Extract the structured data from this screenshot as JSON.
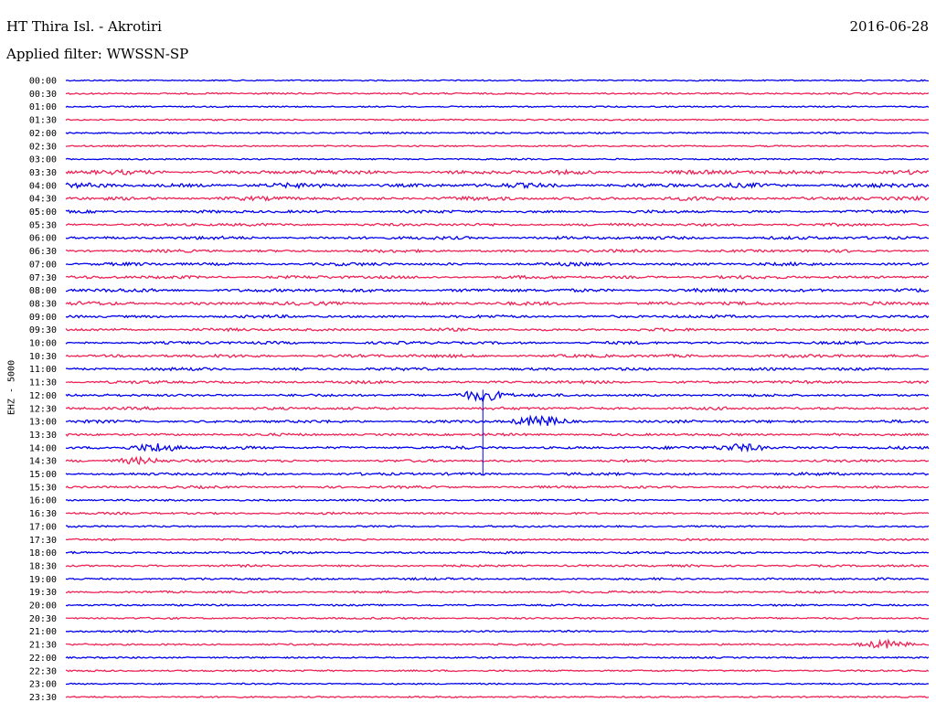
{
  "header": {
    "station": "HT Thira Isl. - Akrotiri",
    "date": "2016-06-28",
    "filter": "Applied filter: WWSSN-SP"
  },
  "channel_label": "EHZ - 5000",
  "colors": {
    "even_trace": "#0000ee",
    "odd_trace": "#ee2255"
  },
  "chart_data": {
    "type": "line",
    "title": "HT Thira Isl. - Akrotiri",
    "ylabel": "EHZ - 5000",
    "row_labels": [
      "00:00",
      "00:30",
      "01:00",
      "01:30",
      "02:00",
      "02:30",
      "03:00",
      "03:30",
      "04:00",
      "04:30",
      "05:00",
      "05:30",
      "06:00",
      "06:30",
      "07:00",
      "07:30",
      "08:00",
      "08:30",
      "09:00",
      "09:30",
      "10:00",
      "10:30",
      "11:00",
      "11:30",
      "12:00",
      "12:30",
      "13:00",
      "13:30",
      "14:00",
      "14:30",
      "15:00",
      "15:30",
      "16:00",
      "16:30",
      "17:00",
      "17:30",
      "18:00",
      "18:30",
      "19:00",
      "19:30",
      "20:00",
      "20:30",
      "21:00",
      "21:30",
      "22:00",
      "22:30",
      "23:00",
      "23:30"
    ],
    "row_minutes": 30,
    "activity_levels": [
      0.05,
      0.15,
      0.05,
      0.1,
      0.2,
      0.1,
      0.1,
      0.9,
      1.0,
      0.8,
      0.5,
      0.5,
      0.6,
      0.5,
      0.6,
      0.6,
      0.7,
      0.7,
      0.5,
      0.5,
      0.5,
      0.6,
      0.5,
      0.5,
      0.4,
      0.5,
      0.5,
      0.4,
      0.5,
      0.4,
      0.5,
      0.4,
      0.2,
      0.3,
      0.2,
      0.2,
      0.3,
      0.3,
      0.3,
      0.3,
      0.2,
      0.2,
      0.2,
      0.2,
      0.1,
      0.15,
      0.1,
      0.1
    ],
    "events": [
      {
        "row": 24,
        "minute": 14.5,
        "amplitude": 0.9
      },
      {
        "row": 26,
        "minute": 16.5,
        "amplitude": 0.8
      },
      {
        "row": 28,
        "minute": 3.2,
        "amplitude": 0.7
      },
      {
        "row": 28,
        "minute": 23.5,
        "amplitude": 0.6
      },
      {
        "row": 29,
        "minute": 2.5,
        "amplitude": 0.5
      },
      {
        "row": 43,
        "minute": 28.5,
        "amplitude": 0.6
      }
    ]
  }
}
